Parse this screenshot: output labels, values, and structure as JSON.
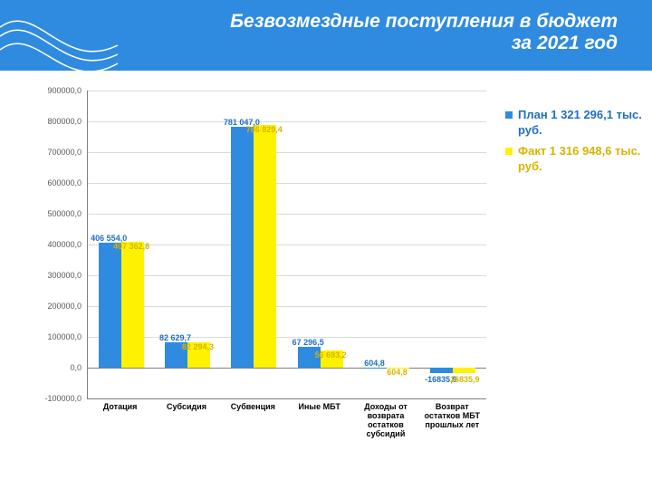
{
  "title_line1": "Безвозмездные поступления в бюджет",
  "title_line2": "за 2021 год",
  "chart": {
    "type": "bar",
    "ymin": -100000,
    "ymax": 900000,
    "ytick_step": 100000,
    "grid_color": "#d9d9d9",
    "axis_color": "#7f7f7f",
    "background_color": "#ffffff",
    "yticks": [
      "-100000,0",
      "0,0",
      "100000,0",
      "200000,0",
      "300000,0",
      "400000,0",
      "500000,0",
      "600000,0",
      "700000,0",
      "800000,0",
      "900000,0"
    ],
    "categories": [
      "Дотация",
      "Субсидия",
      "Субвенция",
      "Иные МБТ",
      "Доходы от возврата остатков субсидий",
      "Возврат остатков МБТ прошлых лет"
    ],
    "series": [
      {
        "name": "План 1 321 296,1 тыс. руб.",
        "color": "#2f8be0",
        "text_color": "#1f6fc4",
        "values": [
          406554.0,
          82629.7,
          781047.0,
          67296.5,
          604.8,
          -16835.9
        ],
        "labels": [
          "406 554,0",
          "82 629,7",
          "781 047,0",
          "67 296,5",
          "604,8",
          "-16835,9"
        ]
      },
      {
        "name": "Факт 1 316 948,6 тыс. руб.",
        "color": "#fff200",
        "text_color": "#d9b300",
        "values": [
          407362.8,
          82294.3,
          786829.4,
          56693.2,
          604.8,
          -16835.9
        ],
        "labels": [
          "407 362,8",
          "82 294,3",
          "786 829,4",
          "56 693,2",
          "604,8",
          "-16835,9"
        ]
      }
    ],
    "bar_width": 0.34,
    "title_fontsize": 21,
    "label_fontsize": 9,
    "legend_fontsize": 13
  }
}
